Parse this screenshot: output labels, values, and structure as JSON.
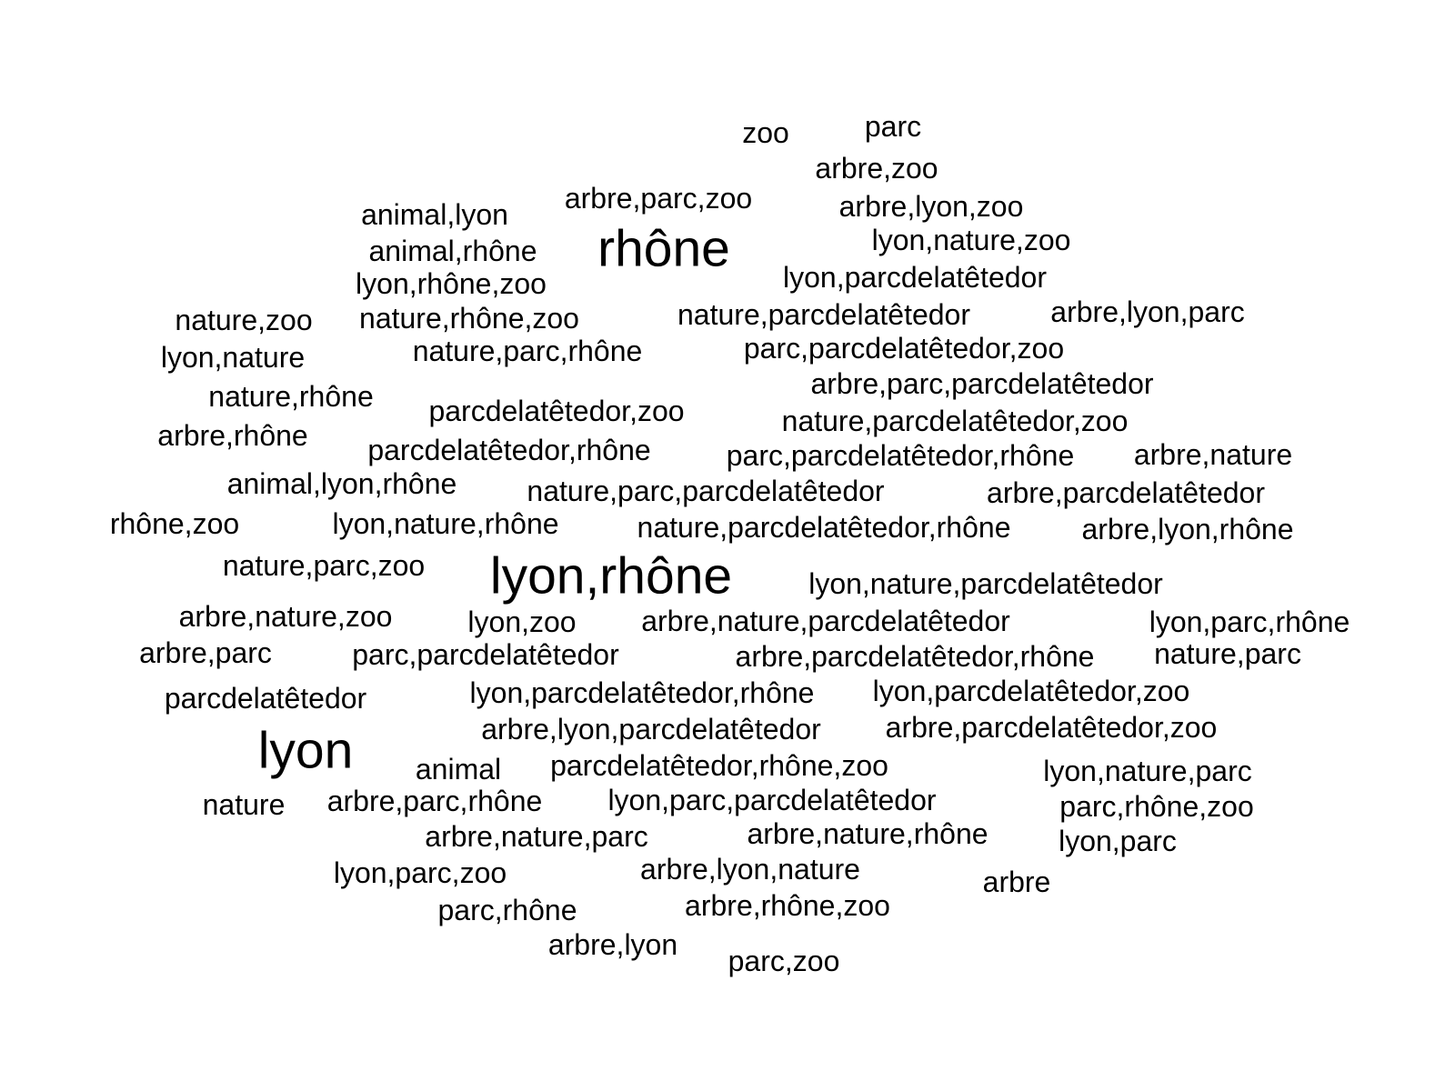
{
  "cloud": {
    "text_color": "#000000",
    "background": "#ffffff",
    "words": [
      {
        "text": "zoo",
        "weight": 1
      },
      {
        "text": "parc",
        "weight": 1
      },
      {
        "text": "arbre,zoo",
        "weight": 1
      },
      {
        "text": "arbre,parc,zoo",
        "weight": 1
      },
      {
        "text": "arbre,lyon,zoo",
        "weight": 1
      },
      {
        "text": "animal,lyon",
        "weight": 1
      },
      {
        "text": "rhône",
        "weight": 2
      },
      {
        "text": "lyon,nature,zoo",
        "weight": 1
      },
      {
        "text": "animal,rhône",
        "weight": 1
      },
      {
        "text": "lyon,parcdelatêtedor",
        "weight": 1
      },
      {
        "text": "lyon,rhône,zoo",
        "weight": 1
      },
      {
        "text": "nature,zoo",
        "weight": 1
      },
      {
        "text": "nature,rhône,zoo",
        "weight": 1
      },
      {
        "text": "nature,parcdelatêtedor",
        "weight": 1
      },
      {
        "text": "arbre,lyon,parc",
        "weight": 1
      },
      {
        "text": "lyon,nature",
        "weight": 1
      },
      {
        "text": "nature,parc,rhône",
        "weight": 1
      },
      {
        "text": "parc,parcdelatêtedor,zoo",
        "weight": 1
      },
      {
        "text": "arbre,parc,parcdelatêtedor",
        "weight": 1
      },
      {
        "text": "nature,rhône",
        "weight": 1
      },
      {
        "text": "parcdelatêtedor,zoo",
        "weight": 1
      },
      {
        "text": "nature,parcdelatêtedor,zoo",
        "weight": 1
      },
      {
        "text": "arbre,rhône",
        "weight": 1
      },
      {
        "text": "parcdelatêtedor,rhône",
        "weight": 1
      },
      {
        "text": "parc,parcdelatêtedor,rhône",
        "weight": 1
      },
      {
        "text": "arbre,nature",
        "weight": 1
      },
      {
        "text": "animal,lyon,rhône",
        "weight": 1
      },
      {
        "text": "nature,parc,parcdelatêtedor",
        "weight": 1
      },
      {
        "text": "arbre,parcdelatêtedor",
        "weight": 1
      },
      {
        "text": "rhône,zoo",
        "weight": 1
      },
      {
        "text": "lyon,nature,rhône",
        "weight": 1
      },
      {
        "text": "nature,parcdelatêtedor,rhône",
        "weight": 1
      },
      {
        "text": "arbre,lyon,rhône",
        "weight": 1
      },
      {
        "text": "nature,parc,zoo",
        "weight": 1
      },
      {
        "text": "lyon,rhône",
        "weight": 2
      },
      {
        "text": "lyon,nature,parcdelatêtedor",
        "weight": 1
      },
      {
        "text": "arbre,nature,zoo",
        "weight": 1
      },
      {
        "text": "lyon,zoo",
        "weight": 1
      },
      {
        "text": "arbre,nature,parcdelatêtedor",
        "weight": 1
      },
      {
        "text": "lyon,parc,rhône",
        "weight": 1
      },
      {
        "text": "arbre,parc",
        "weight": 1
      },
      {
        "text": "parc,parcdelatêtedor",
        "weight": 1
      },
      {
        "text": "arbre,parcdelatêtedor,rhône",
        "weight": 1
      },
      {
        "text": "nature,parc",
        "weight": 1
      },
      {
        "text": "parcdelatêtedor",
        "weight": 1
      },
      {
        "text": "lyon,parcdelatêtedor,rhône",
        "weight": 1
      },
      {
        "text": "lyon,parcdelatêtedor,zoo",
        "weight": 1
      },
      {
        "text": "arbre,lyon,parcdelatêtedor",
        "weight": 1
      },
      {
        "text": "arbre,parcdelatêtedor,zoo",
        "weight": 1
      },
      {
        "text": "lyon",
        "weight": 2
      },
      {
        "text": "animal",
        "weight": 1
      },
      {
        "text": "parcdelatêtedor,rhône,zoo",
        "weight": 1
      },
      {
        "text": "lyon,nature,parc",
        "weight": 1
      },
      {
        "text": "nature",
        "weight": 1
      },
      {
        "text": "arbre,parc,rhône",
        "weight": 1
      },
      {
        "text": "lyon,parc,parcdelatêtedor",
        "weight": 1
      },
      {
        "text": "parc,rhône,zoo",
        "weight": 1
      },
      {
        "text": "arbre,nature,parc",
        "weight": 1
      },
      {
        "text": "arbre,nature,rhône",
        "weight": 1
      },
      {
        "text": "lyon,parc",
        "weight": 1
      },
      {
        "text": "lyon,parc,zoo",
        "weight": 1
      },
      {
        "text": "arbre,lyon,nature",
        "weight": 1
      },
      {
        "text": "arbre",
        "weight": 1
      },
      {
        "text": "parc,rhône",
        "weight": 1
      },
      {
        "text": "arbre,rhône,zoo",
        "weight": 1
      },
      {
        "text": "arbre,lyon",
        "weight": 1
      },
      {
        "text": "parc,zoo",
        "weight": 1
      }
    ]
  }
}
